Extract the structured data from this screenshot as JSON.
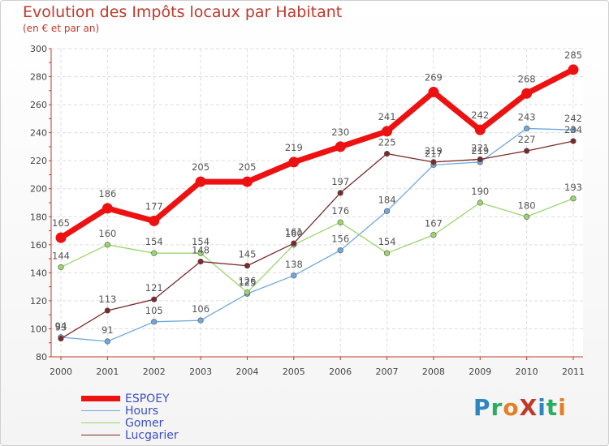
{
  "header": {
    "title": "Evolution des Impôts locaux par Habitant",
    "subtitle": "(en € et par an)"
  },
  "logo": {
    "text": "ProXiti",
    "letters": [
      "P",
      "r",
      "o",
      "X",
      "i",
      "t",
      "i"
    ],
    "colors": [
      "#2e86c1",
      "#27ae60",
      "#e67e22",
      "#c0392b",
      "#2e86c1",
      "#27ae60",
      "#e67e22"
    ]
  },
  "chart_data": {
    "type": "line",
    "title": "Evolution des Impôts locaux par Habitant",
    "subtitle": "(en € et par an)",
    "xlabel": "",
    "ylabel": "",
    "ylim": [
      80,
      300
    ],
    "yticks": [
      80,
      100,
      120,
      140,
      160,
      180,
      200,
      220,
      240,
      260,
      280,
      300
    ],
    "categories": [
      "2000",
      "2001",
      "2002",
      "2003",
      "2004",
      "2005",
      "2006",
      "2007",
      "2008",
      "2009",
      "2010",
      "2011"
    ],
    "grid": true,
    "legend_position": "bottom-left",
    "series": [
      {
        "name": "ESPOEY",
        "color": "#ee1111",
        "values": [
          165,
          186,
          177,
          205,
          205,
          219,
          230,
          241,
          269,
          242,
          268,
          285
        ]
      },
      {
        "name": "Hours",
        "color": "#6fa8dc",
        "values": [
          94,
          91,
          105,
          106,
          125,
          138,
          156,
          184,
          217,
          219,
          243,
          242
        ]
      },
      {
        "name": "Gomer",
        "color": "#9bd66b",
        "values": [
          144,
          160,
          154,
          154,
          126,
          160,
          176,
          154,
          167,
          190,
          180,
          193
        ]
      },
      {
        "name": "Lucgarier",
        "color": "#7b2a2a",
        "values": [
          93,
          113,
          121,
          148,
          145,
          161,
          197,
          225,
          219,
          221,
          227,
          234
        ]
      }
    ]
  }
}
